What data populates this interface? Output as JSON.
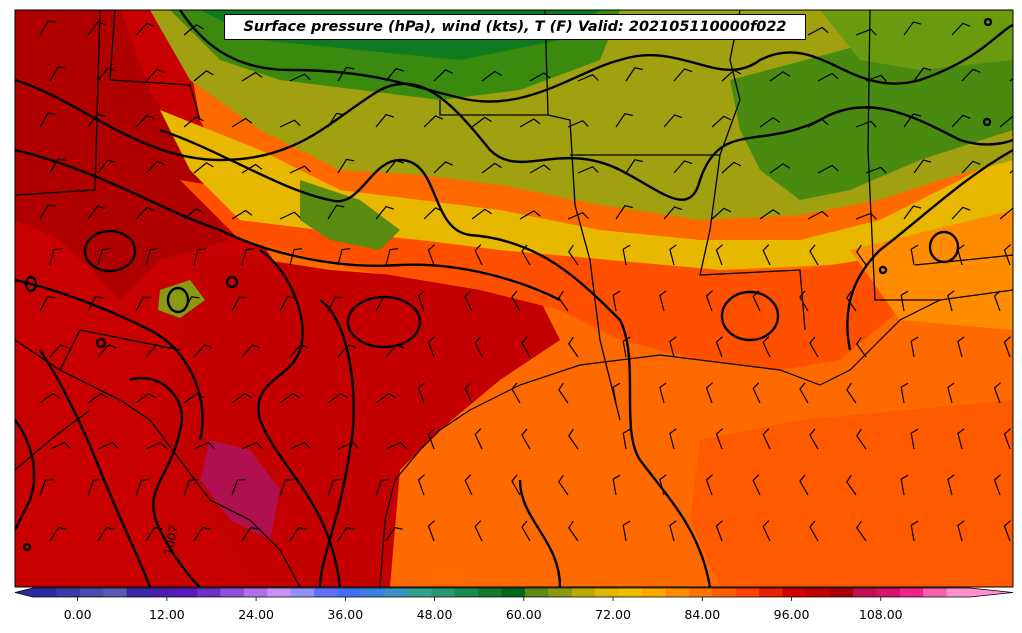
{
  "title": "Surface pressure (hPa), wind (kts), T (F) Valid: 202105110000f022",
  "contour_labels": [
    "1007"
  ],
  "colorbar": {
    "ticks": [
      {
        "value": 0,
        "label": "0.00"
      },
      {
        "value": 12,
        "label": "12.00"
      },
      {
        "value": 24,
        "label": "24.00"
      },
      {
        "value": 36,
        "label": "36.00"
      },
      {
        "value": 48,
        "label": "48.00"
      },
      {
        "value": 60,
        "label": "60.00"
      },
      {
        "value": 72,
        "label": "72.00"
      },
      {
        "value": 84,
        "label": "84.00"
      },
      {
        "value": 96,
        "label": "96.00"
      },
      {
        "value": 108,
        "label": "108.00"
      }
    ],
    "min": -6,
    "max": 120,
    "colors": [
      "#2a2aa0",
      "#3a3aa8",
      "#4a4ab0",
      "#5a5ab4",
      "#3a2aa4",
      "#4a20b0",
      "#5a1abc",
      "#7030c8",
      "#9050dc",
      "#b070ec",
      "#c890f4",
      "#9090ff",
      "#6070ff",
      "#4070ff",
      "#3a80e0",
      "#3a90c0",
      "#30a090",
      "#289870",
      "#1a8a50",
      "#107a30",
      "#006a18",
      "#5a8a10",
      "#8a9a10",
      "#b8aa00",
      "#e0b800",
      "#f0c000",
      "#ffa800",
      "#ff8c00",
      "#ff7400",
      "#ff5c00",
      "#ff4000",
      "#e82000",
      "#d40000",
      "#c00000",
      "#a80008",
      "#c01050",
      "#d81070",
      "#f02090",
      "#f860b0",
      "#ff90d0"
    ]
  }
}
